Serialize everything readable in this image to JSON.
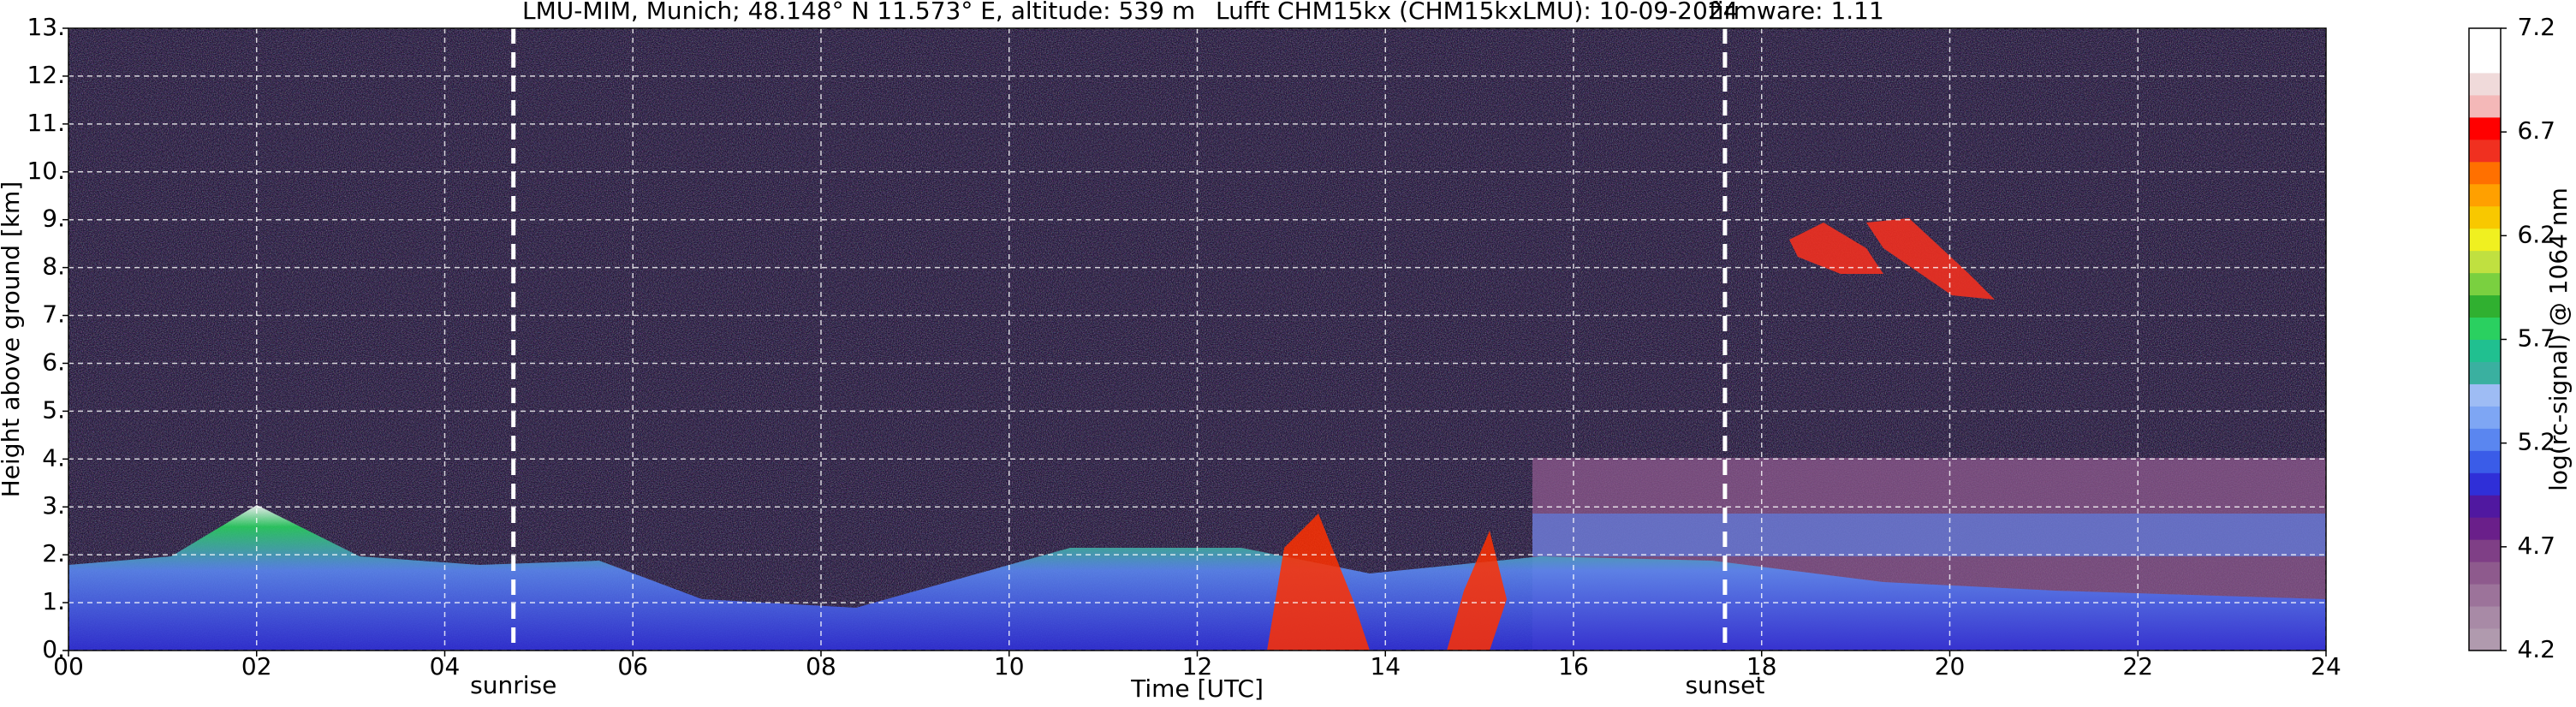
{
  "chart_data": {
    "type": "heatmap",
    "title": [
      "LMU-MIM, Munich; 48.148° N 11.573° E, altitude: 539 m",
      "Lufft CHM15kx (CHM15kxLMU): 10-09-2024",
      "firmware: 1.11"
    ],
    "xlabel": "Time [UTC]",
    "ylabel": "Height above ground [km]",
    "xlim": [
      0,
      24
    ],
    "xticks": [
      {
        "value": 0,
        "label": "00"
      },
      {
        "value": 2,
        "label": "02"
      },
      {
        "value": 4,
        "label": "04"
      },
      {
        "value": 6,
        "label": "06"
      },
      {
        "value": 8,
        "label": "08"
      },
      10,
      12,
      14,
      16,
      18,
      20,
      22,
      24
    ],
    "ylim": [
      0,
      13
    ],
    "yticks": [
      {
        "value": 0,
        "label": "0."
      },
      {
        "value": 1,
        "label": "1."
      },
      {
        "value": 2,
        "label": "2."
      },
      {
        "value": 3,
        "label": "3."
      },
      {
        "value": 4,
        "label": "4."
      },
      {
        "value": 5,
        "label": "5."
      },
      {
        "value": 6,
        "label": "6."
      },
      {
        "value": 7,
        "label": "7."
      },
      {
        "value": 8,
        "label": "8."
      },
      {
        "value": 9,
        "label": "9."
      },
      {
        "value": 10,
        "label": "10."
      },
      {
        "value": 11,
        "label": "11."
      },
      {
        "value": 12,
        "label": "12."
      },
      {
        "value": 13,
        "label": "13."
      }
    ],
    "grid": true,
    "colorbar": {
      "label": "log(rc-signal) @ 1064 nm",
      "lim": [
        4.2,
        7.2
      ],
      "ticks": [
        4.2,
        4.7,
        5.2,
        5.7,
        6.2,
        6.7,
        7.2
      ],
      "colors": [
        "#b09aae",
        "#a88aa6",
        "#9c739a",
        "#8e5a8d",
        "#7f3f86",
        "#6a1f8a",
        "#5018a0",
        "#2f2fd8",
        "#3a5ce8",
        "#5a86f0",
        "#7ea6f4",
        "#9ebcf4",
        "#3ab0a0",
        "#20c090",
        "#2ad060",
        "#30b030",
        "#7ad040",
        "#c0e040",
        "#f0f020",
        "#f8c800",
        "#ffa000",
        "#ff7000",
        "#f03020",
        "#ff0000",
        "#f4b8b8",
        "#f0dada",
        "#ffffff",
        "#ffffff"
      ]
    },
    "annotations": [
      {
        "text": "sunrise",
        "x": 4.73
      },
      {
        "text": "sunset",
        "x": 17.61
      }
    ]
  }
}
